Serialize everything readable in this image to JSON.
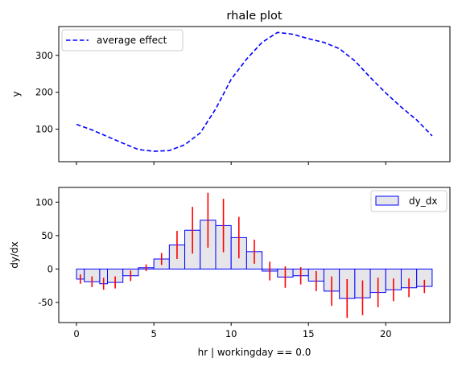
{
  "chart_data": [
    {
      "type": "line",
      "title": "rhale plot",
      "ylabel": "y",
      "xlabel": "",
      "xlim": [
        -1.15,
        24.15
      ],
      "ylim": [
        12,
        378
      ],
      "xticks": [
        0,
        5,
        10,
        15,
        20
      ],
      "yticks": [
        100,
        200,
        300
      ],
      "legend": {
        "placement": "top-left",
        "entries": [
          "average effect"
        ]
      },
      "series": [
        {
          "name": "average effect",
          "color": "#0000ff",
          "style": "dashed",
          "x": [
            0,
            1,
            2,
            3,
            4,
            5,
            6,
            7,
            8,
            9,
            10,
            11,
            12,
            13,
            14,
            15,
            16,
            17,
            18,
            19,
            20,
            21,
            22,
            23
          ],
          "y": [
            113,
            98,
            80,
            62,
            45,
            40,
            42,
            58,
            90,
            155,
            235,
            290,
            335,
            362,
            357,
            345,
            335,
            318,
            285,
            240,
            198,
            160,
            125,
            82
          ]
        }
      ]
    },
    {
      "type": "bar",
      "xlabel": "hr | workingday == 0.0",
      "ylabel": "dy/dx",
      "xlim": [
        -1.15,
        24.15
      ],
      "ylim": [
        -80,
        122
      ],
      "xticks": [
        0,
        5,
        10,
        15,
        20
      ],
      "yticks": [
        -50,
        0,
        50,
        100
      ],
      "legend": {
        "placement": "top-right",
        "entries": [
          "dy_dx"
        ]
      },
      "bar_color": "#e6e6ea",
      "edge_color": "#0000ff",
      "error_color": "#ff0000",
      "series": [
        {
          "name": "dy_dx",
          "bins": [
            {
              "x0": 0.0,
              "x1": 0.5,
              "y": -15,
              "err": 7
            },
            {
              "x0": 0.5,
              "x1": 1.5,
              "y": -19,
              "err": 8
            },
            {
              "x0": 1.5,
              "x1": 2.0,
              "y": -22,
              "err": 9
            },
            {
              "x0": 2.0,
              "x1": 3.0,
              "y": -20,
              "err": 9
            },
            {
              "x0": 3.0,
              "x1": 4.0,
              "y": -10,
              "err": 8
            },
            {
              "x0": 4.0,
              "x1": 5.0,
              "y": 2,
              "err": 5
            },
            {
              "x0": 5.0,
              "x1": 6.0,
              "y": 15,
              "err": 9
            },
            {
              "x0": 6.0,
              "x1": 7.0,
              "y": 36,
              "err": 21
            },
            {
              "x0": 7.0,
              "x1": 8.0,
              "y": 58,
              "err": 35
            },
            {
              "x0": 8.0,
              "x1": 9.0,
              "y": 73,
              "err": 41
            },
            {
              "x0": 9.0,
              "x1": 10.0,
              "y": 65,
              "err": 40
            },
            {
              "x0": 10.0,
              "x1": 11.0,
              "y": 47,
              "err": 31
            },
            {
              "x0": 11.0,
              "x1": 12.0,
              "y": 26,
              "err": 18
            },
            {
              "x0": 12.0,
              "x1": 13.0,
              "y": -3,
              "err": 14
            },
            {
              "x0": 13.0,
              "x1": 14.0,
              "y": -12,
              "err": 16
            },
            {
              "x0": 14.0,
              "x1": 15.0,
              "y": -10,
              "err": 13
            },
            {
              "x0": 15.0,
              "x1": 16.0,
              "y": -18,
              "err": 15
            },
            {
              "x0": 16.0,
              "x1": 17.0,
              "y": -33,
              "err": 22
            },
            {
              "x0": 17.0,
              "x1": 18.0,
              "y": -44,
              "err": 29
            },
            {
              "x0": 18.0,
              "x1": 19.0,
              "y": -43,
              "err": 26
            },
            {
              "x0": 19.0,
              "x1": 20.0,
              "y": -35,
              "err": 22
            },
            {
              "x0": 20.0,
              "x1": 21.0,
              "y": -31,
              "err": 17
            },
            {
              "x0": 21.0,
              "x1": 22.0,
              "y": -28,
              "err": 14
            },
            {
              "x0": 22.0,
              "x1": 23.0,
              "y": -26,
              "err": 10
            }
          ]
        }
      ]
    }
  ]
}
